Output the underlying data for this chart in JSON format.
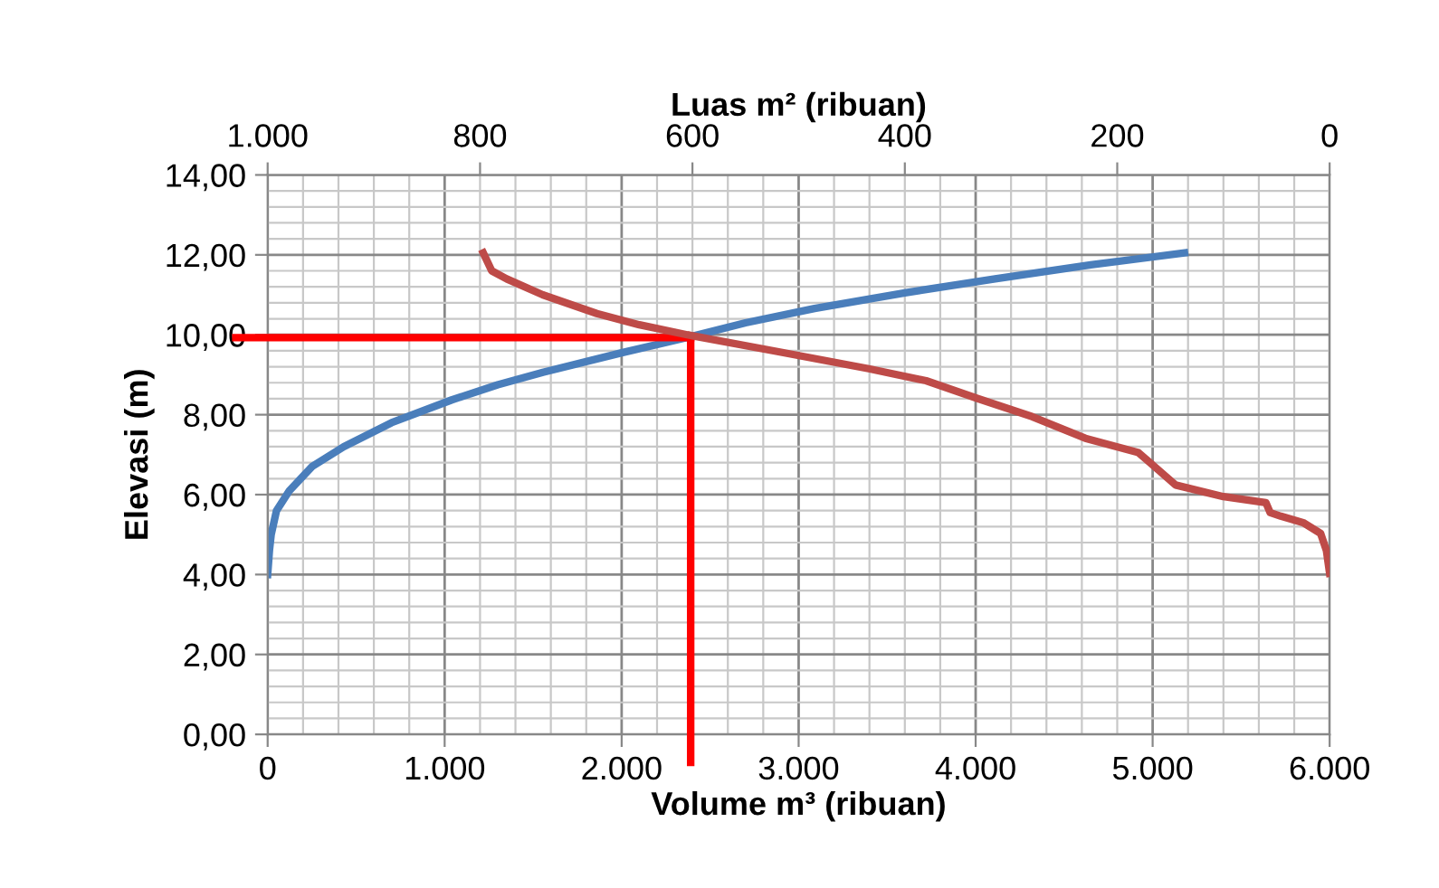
{
  "chart_data": {
    "type": "line",
    "xlabel": "Volume m³ (ribuan)",
    "x2label": "Luas m² (ribuan)",
    "ylabel": "Elevasi (m)",
    "xlim": [
      0,
      6000
    ],
    "xticks": [
      0,
      {
        "value": 1000,
        "label": "1.000"
      },
      {
        "value": 2000,
        "label": "2.000"
      },
      {
        "value": 3000,
        "label": "3.000"
      },
      {
        "value": 4000,
        "label": "4.000"
      },
      {
        "value": 5000,
        "label": "5.000"
      },
      {
        "value": 6000,
        "label": "6.000"
      }
    ],
    "x2lim": [
      1000,
      0
    ],
    "x2ticks": [
      {
        "value": 1000,
        "label": "1.000"
      },
      800,
      600,
      400,
      200,
      0
    ],
    "ylim": [
      0,
      14
    ],
    "yticks": [
      {
        "value": 0,
        "label": "0,00"
      },
      {
        "value": 2,
        "label": "2,00"
      },
      {
        "value": 4,
        "label": "4,00"
      },
      {
        "value": 6,
        "label": "6,00"
      },
      {
        "value": 8,
        "label": "8,00"
      },
      {
        "value": 10,
        "label": "10,00"
      },
      {
        "value": 12,
        "label": "12,00"
      },
      {
        "value": 14,
        "label": "14,00"
      }
    ],
    "grid": true,
    "marker": "none",
    "line_style": "solid",
    "series": [
      {
        "color": "#4a7ebb",
        "x": [
          0,
          10,
          20,
          50,
          123,
          250,
          430,
          700,
          1040,
          1300,
          1555,
          2000,
          2370,
          2700,
          3090,
          3600,
          4110,
          4650,
          5180
        ],
        "values": [
          4.0,
          4.6,
          5.0,
          5.6,
          6.1,
          6.7,
          7.2,
          7.8,
          8.37,
          8.75,
          9.06,
          9.55,
          9.93,
          10.3,
          10.66,
          11.05,
          11.4,
          11.75,
          12.05
        ]
      },
      {
        "color": "#be4b48",
        "axis": "x2",
        "x": [
          797,
          789,
          775,
          741,
          690,
          650,
          605,
          520,
          434,
          380,
          332,
          280,
          230,
          180,
          145,
          100,
          60,
          56,
          46,
          25,
          8.5,
          3,
          0
        ],
        "values": [
          12.05,
          11.6,
          11.4,
          11.0,
          10.53,
          10.25,
          10.0,
          9.58,
          9.15,
          8.85,
          8.41,
          7.95,
          7.41,
          7.05,
          6.24,
          5.95,
          5.8,
          5.55,
          5.46,
          5.3,
          5.03,
          4.6,
          4.03
        ]
      }
    ],
    "ref_lines": [
      {
        "axis": "y",
        "value": 9.93,
        "color": "#ff0000",
        "line_style": "solid"
      },
      {
        "axis": "x",
        "value": 2390,
        "color": "#ff0000",
        "line_style": "solid"
      }
    ]
  }
}
